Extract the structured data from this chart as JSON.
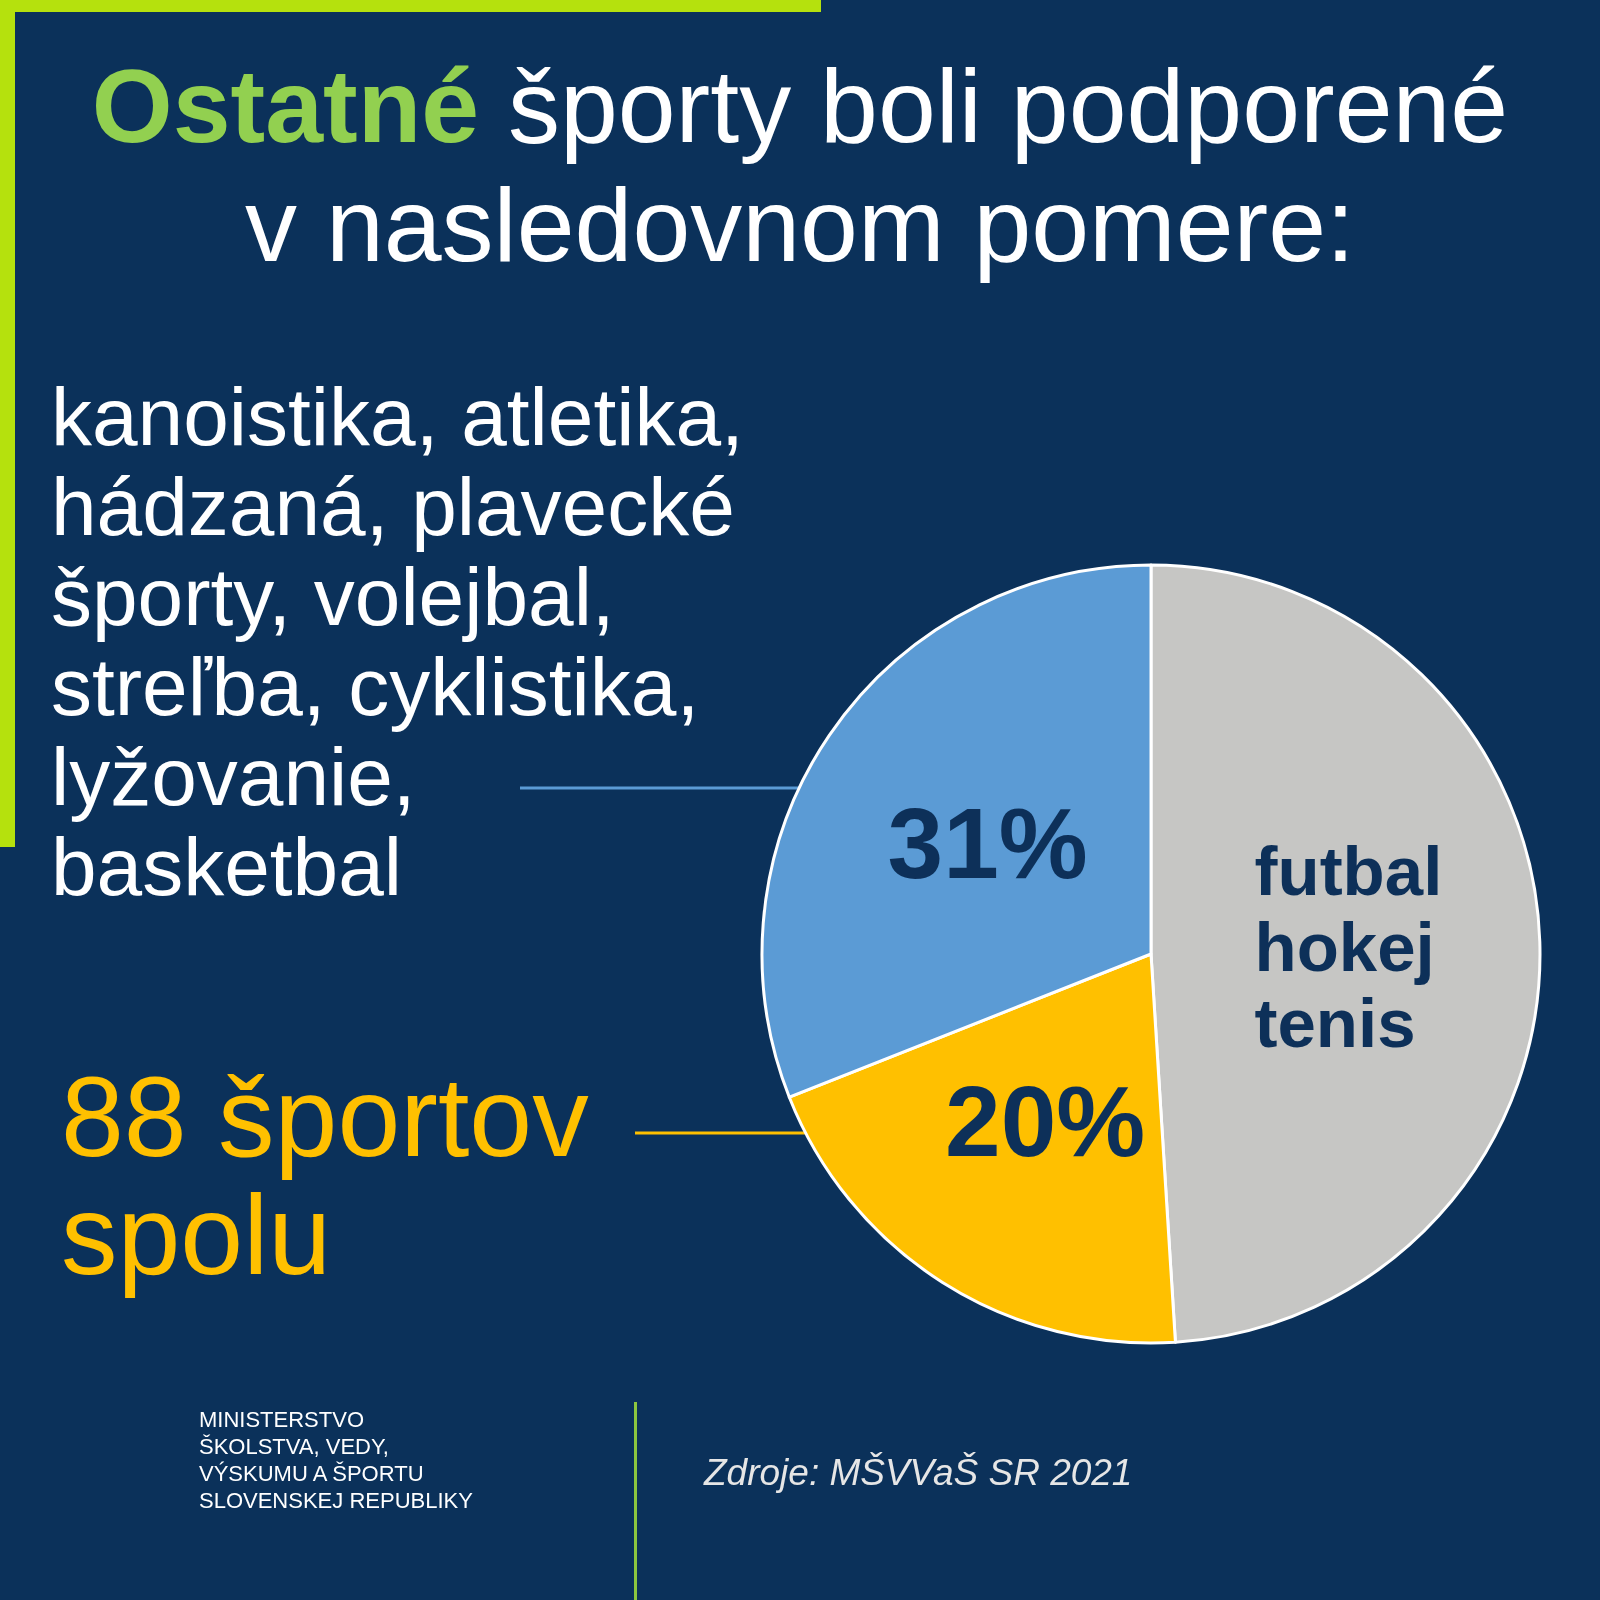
{
  "chart_data": {
    "type": "pie",
    "title": "Ostatné športy boli podporené\nv nasledovnom pomere:",
    "categories": [
      "futbal\nhokej\ntenis",
      "88 športov\nspolu",
      "kanoistika, atletika,\nhádzaná, plavecké\nšporty, volejbal,\nstreľba, cyklistika,\nlyžovanie,\nbasketbal"
    ],
    "values": [
      49,
      20,
      31
    ],
    "value_labels": [
      null,
      "20%",
      "31%"
    ],
    "colors": [
      "#c6c6c4",
      "#ffc000",
      "#5b9bd5"
    ],
    "annotations": [
      "MINISTERSTVO\nŠKOLSTVA, VEDY,\nVÝSKUMU A ŠPORTU\nSLOVENSKEJ REPUBLIKY",
      "Zdroje: MŠVVaŠ SR 2021"
    ]
  }
}
